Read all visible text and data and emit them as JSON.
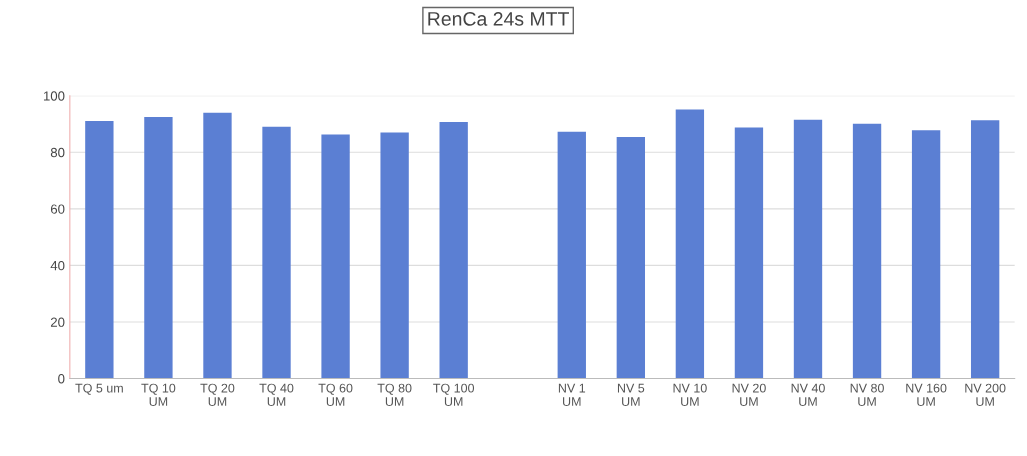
{
  "chart_data": {
    "type": "bar",
    "title": "RenCa 24s MTT",
    "categories": [
      "TQ 5 um",
      "TQ 10\nUM",
      "TQ 20\nUM",
      "TQ 40\nUM",
      "TQ 60\nUM",
      "TQ 80\nUM",
      "TQ 100\nUM",
      null,
      "NV 1\nUM",
      "NV 5\nUM",
      "NV 10\nUM",
      "NV 20\nUM",
      "NV 40\nUM",
      "NV 80\nUM",
      "NV 160\nUM",
      "NV 200\nUM"
    ],
    "values": [
      91.1,
      92.5,
      94.0,
      89.0,
      86.3,
      87.0,
      90.7,
      null,
      87.3,
      85.4,
      95.1,
      88.8,
      91.5,
      90.1,
      87.8,
      91.3
    ],
    "color": "#5b7fd3",
    "ylim": [
      0,
      100
    ],
    "yticks": [
      0,
      20,
      40,
      60,
      80,
      100
    ],
    "grid": "y",
    "legend": false
  }
}
